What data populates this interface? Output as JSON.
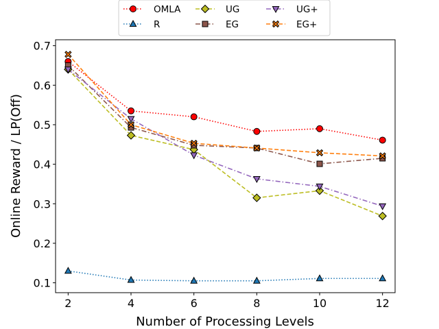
{
  "chart_data": {
    "type": "line",
    "title": "",
    "xlabel": "Number of Processing Levels",
    "ylabel": "Online Reward / LP(Off)",
    "x": [
      2,
      4,
      6,
      8,
      10,
      12
    ],
    "xlim": [
      1.6,
      12.4
    ],
    "ylim": [
      0.075,
      0.715
    ],
    "xticks": [
      "2",
      "4",
      "6",
      "8",
      "10",
      "12"
    ],
    "yticks": [
      "0.1",
      "0.2",
      "0.3",
      "0.4",
      "0.5",
      "0.6",
      "0.7"
    ],
    "grid": false,
    "legend_position": "top-center",
    "series": [
      {
        "name": "OMLA",
        "values": [
          0.66,
          0.535,
          0.52,
          0.483,
          0.49,
          0.461
        ],
        "color": "#ff0000",
        "marker": "circle",
        "marker_color": "#ff0000",
        "line_style": "dotted"
      },
      {
        "name": "R",
        "values": [
          0.13,
          0.107,
          0.105,
          0.105,
          0.111,
          0.111
        ],
        "color": "#1f77b4",
        "marker": "triangle-up",
        "marker_color": "#1f77b4",
        "line_style": "dotted"
      },
      {
        "name": "UG",
        "values": [
          0.64,
          0.473,
          0.437,
          0.315,
          0.333,
          0.269
        ],
        "color": "#bcbd22",
        "marker": "diamond",
        "marker_color": "#bcbd22",
        "line_style": "dashed"
      },
      {
        "name": "EG",
        "values": [
          0.65,
          0.493,
          0.448,
          0.441,
          0.401,
          0.415
        ],
        "color": "#8c564b",
        "marker": "square",
        "marker_color": "#8c564b",
        "line_style": "dashdot"
      },
      {
        "name": "UG+",
        "values": [
          0.64,
          0.515,
          0.423,
          0.363,
          0.344,
          0.294
        ],
        "color": "#9467bd",
        "marker": "triangle-down",
        "marker_color": "#9467bd",
        "line_style": "dashdot"
      },
      {
        "name": "EG+",
        "values": [
          0.678,
          0.5,
          0.453,
          0.441,
          0.429,
          0.421
        ],
        "color": "#ff7f0e",
        "marker": "x-filled",
        "marker_color": "#ff7f0e",
        "line_style": "dashed"
      }
    ]
  }
}
